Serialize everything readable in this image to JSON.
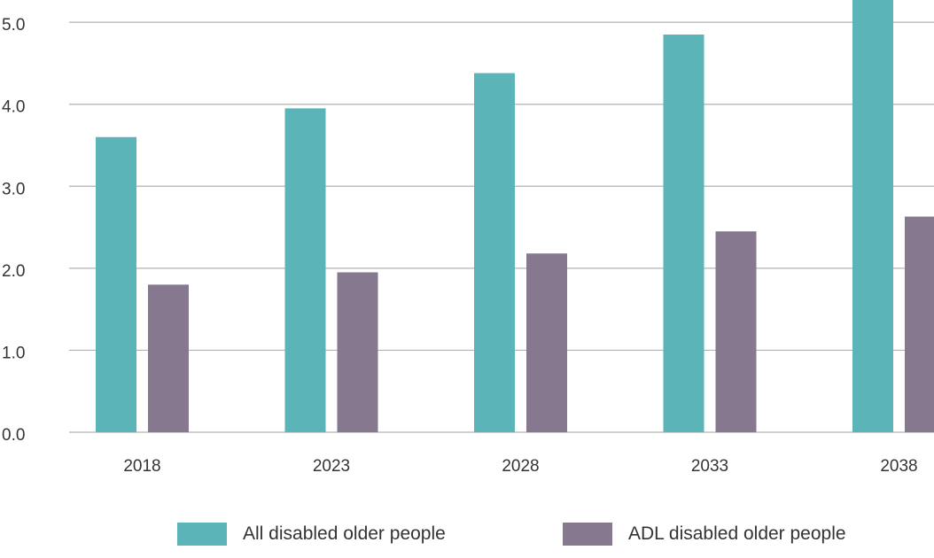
{
  "chart_data": {
    "type": "bar",
    "categories": [
      "2018",
      "2023",
      "2028",
      "2033",
      "2038"
    ],
    "series": [
      {
        "name": "All disabled older people",
        "values": [
          3.6,
          3.95,
          4.38,
          4.85,
          5.3
        ],
        "color": "#5ab4b8"
      },
      {
        "name": "ADL disabled older people",
        "values": [
          1.8,
          1.95,
          2.18,
          2.45,
          2.63
        ],
        "color": "#86788f"
      }
    ],
    "yticks": [
      "0.0",
      "1.0",
      "2.0",
      "3.0",
      "4.0",
      "5.0"
    ],
    "ylim": [
      0,
      5.25
    ],
    "grid": true,
    "legend": "bottom"
  }
}
